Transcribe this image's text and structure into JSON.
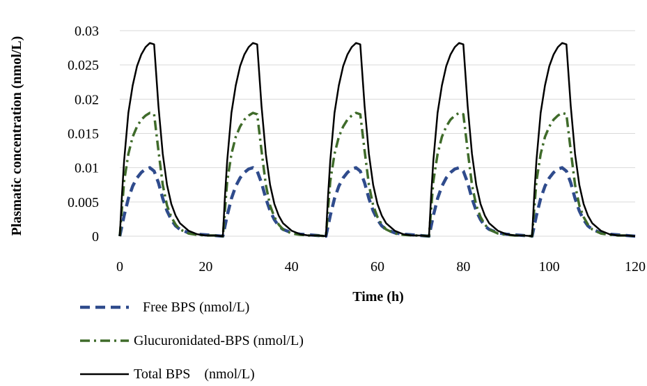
{
  "chart_data": {
    "type": "line",
    "xlabel": "Time (h)",
    "ylabel": "Plasmatic concentration (nmol/L)",
    "xlim": [
      0,
      120
    ],
    "ylim": [
      0,
      0.03
    ],
    "xticks": [
      "0",
      "20",
      "40",
      "60",
      "80",
      "100",
      "120"
    ],
    "yticks": [
      "0",
      "0.005",
      "0.01",
      "0.015",
      "0.02",
      "0.025",
      "0.03"
    ],
    "grid": "horizontal",
    "legend_position": "bottom-left",
    "dosing_times_h": [
      0,
      24,
      48,
      72,
      96
    ],
    "series": [
      {
        "name": "Free BPS (nmol/L)",
        "style": "dashed",
        "color": "#2f4b8c",
        "x_rel": [
          0,
          0.5,
          1,
          2,
          3,
          4,
          5,
          6,
          7,
          8,
          9,
          10,
          11,
          12,
          13,
          14,
          16,
          18,
          20,
          22,
          24
        ],
        "y": [
          0,
          0.0015,
          0.003,
          0.0055,
          0.0073,
          0.0085,
          0.0093,
          0.0098,
          0.01,
          0.0095,
          0.0078,
          0.0055,
          0.0037,
          0.0024,
          0.0015,
          0.001,
          0.0005,
          0.0003,
          0.0002,
          0.0001,
          0
        ]
      },
      {
        "name": "Glucuronidated-BPS (nmol/L)",
        "style": "dash-dot",
        "color": "#3f6b2a",
        "x_rel": [
          0,
          0.5,
          1,
          2,
          3,
          4,
          5,
          6,
          7,
          8,
          9,
          10,
          11,
          12,
          13,
          14,
          16,
          18,
          20,
          22,
          24
        ],
        "y": [
          0,
          0.004,
          0.008,
          0.012,
          0.0145,
          0.016,
          0.017,
          0.0176,
          0.018,
          0.0178,
          0.0125,
          0.0075,
          0.0045,
          0.0028,
          0.0017,
          0.001,
          0.0004,
          0.0002,
          0.0001,
          0.0001,
          0
        ]
      },
      {
        "name": "Total BPS    (nmol/L)",
        "style": "solid",
        "color": "#000000",
        "x_rel": [
          0,
          0.5,
          1,
          2,
          3,
          4,
          5,
          6,
          7,
          8,
          9,
          10,
          11,
          12,
          13,
          14,
          16,
          18,
          20,
          22,
          24
        ],
        "y": [
          0,
          0.006,
          0.011,
          0.018,
          0.022,
          0.0248,
          0.0265,
          0.0276,
          0.0282,
          0.028,
          0.019,
          0.012,
          0.0075,
          0.0047,
          0.003,
          0.0019,
          0.0008,
          0.0003,
          0.0001,
          0.0001,
          0
        ]
      }
    ]
  }
}
